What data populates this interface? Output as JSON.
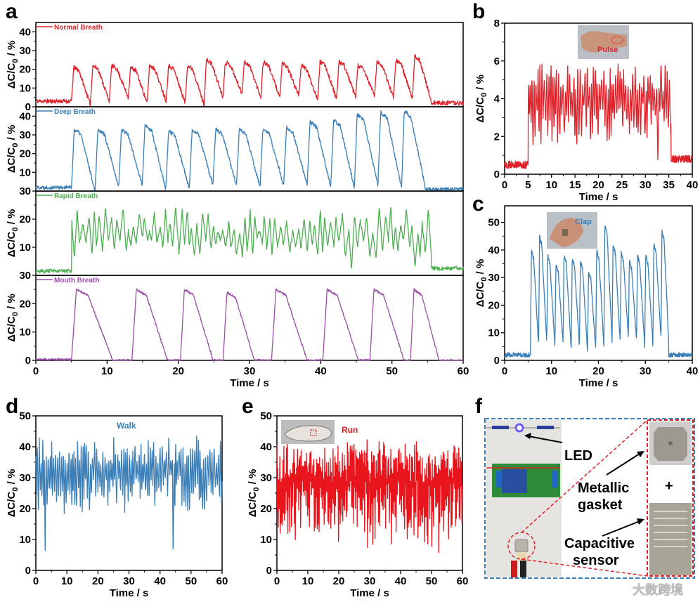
{
  "panel_letters": {
    "a": "a",
    "b": "b",
    "c": "c",
    "d": "d",
    "e": "e",
    "f": "f"
  },
  "ylabel": {
    "main": "ΔC/C",
    "sub": "0",
    "tail": " / %"
  },
  "watermark": "大数跨境",
  "chart_data": [
    {
      "id": "a",
      "type": "line",
      "xlabel": "Time / s",
      "xlim": [
        0,
        60
      ],
      "xticks": [
        0,
        10,
        20,
        30,
        40,
        50,
        60
      ],
      "subplots": [
        {
          "name": "Normal Breath",
          "color": "#e0222a",
          "ylim": [
            0,
            45
          ],
          "yticks": [
            0,
            10,
            20,
            30,
            40
          ],
          "series": {
            "mode": "cycles",
            "baseline": 3,
            "end_baseline": 2,
            "noise": 1.2,
            "onset": 5,
            "offset": 55.5,
            "period": 2.66,
            "peaks": [
              21,
              22,
              22,
              21,
              22,
              22,
              22,
              25,
              24,
              24,
              24,
              23,
              22,
              24,
              24,
              22,
              24,
              25,
              27
            ],
            "troughs": [
              1,
              3,
              5,
              2,
              3,
              2,
              1,
              5,
              7,
              5,
              5,
              6,
              4,
              4,
              5,
              6,
              5,
              4,
              3
            ],
            "seed": 11
          }
        },
        {
          "name": "Deep Breath",
          "color": "#3a7fb8",
          "ylim": [
            0,
            45
          ],
          "yticks": [
            10,
            20,
            30,
            40
          ],
          "series": {
            "mode": "cycles",
            "baseline": 2,
            "end_baseline": 1,
            "noise": 1.0,
            "onset": 5,
            "offset": 54.6,
            "period": 3.31,
            "peaks": [
              33,
              33,
              33,
              35,
              32,
              33,
              33,
              33,
              33,
              34,
              37,
              38,
              41,
              42,
              43
            ],
            "troughs": [
              0,
              2,
              3,
              1,
              1,
              3,
              3,
              2,
              3,
              3,
              2,
              2,
              3,
              2,
              4
            ],
            "seed": 22
          }
        },
        {
          "name": "Rapid Breath",
          "color": "#4caf50",
          "ylim": [
            0,
            30
          ],
          "yticks": [
            10,
            20,
            30
          ],
          "series": {
            "mode": "band",
            "baseline": 1.5,
            "end_baseline": 2.5,
            "noise": 0.7,
            "onset": 5,
            "offset": 55.5,
            "period": 0.75,
            "low": [
              6,
              13
            ],
            "high": [
              15,
              25
            ],
            "dip": 0,
            "dip_prob": 0.04,
            "seed": 33
          }
        },
        {
          "name": "Mouth Breath",
          "color": "#9b4fa8",
          "ylim": [
            0,
            30
          ],
          "yticks": [
            0,
            10,
            20,
            30
          ],
          "series": {
            "mode": "cycles",
            "baseline": 0.3,
            "end_baseline": 0.3,
            "noise": 0.4,
            "onset": 5,
            "offset": 60,
            "starts": [
              5.0,
              13.5,
              20.3,
              26.3,
              33.1,
              40.3,
              46.9,
              52.6
            ],
            "widths": [
              5.8,
              5,
              4.6,
              4.4,
              5,
              5,
              4.8,
              4
            ],
            "peaks": [
              25,
              25,
              25,
              24,
              25,
              25,
              25,
              25
            ],
            "troughs": [
              0,
              0,
              0,
              0,
              0,
              0,
              0,
              0
            ],
            "seed": 44
          }
        }
      ]
    },
    {
      "id": "b",
      "type": "line",
      "xlabel": "Time / s",
      "xlim": [
        0,
        40
      ],
      "xticks": [
        0,
        5,
        10,
        15,
        20,
        25,
        30,
        35,
        40
      ],
      "ylim": [
        0,
        8
      ],
      "yticks": [
        0,
        2,
        4,
        6,
        8
      ],
      "inset_label": "Pulse",
      "color": "#e0222a",
      "series": {
        "mode": "band",
        "baseline": 0.5,
        "end_baseline": 0.8,
        "noise": 0.2,
        "onset": 5,
        "offset": 35.5,
        "period": 0.45,
        "low": [
          1.5,
          3.5
        ],
        "high": [
          4.5,
          6
        ],
        "dip": 0,
        "dip_prob": 0.03,
        "seed": 55
      }
    },
    {
      "id": "c",
      "type": "line",
      "xlabel": "Time / s",
      "xlim": [
        0,
        40
      ],
      "xticks": [
        0,
        10,
        20,
        30,
        40
      ],
      "ylim": [
        0,
        56
      ],
      "yticks": [
        0,
        10,
        20,
        30,
        40,
        50
      ],
      "inset_label": "Clap",
      "color": "#3a7fb8",
      "series": {
        "mode": "cycles",
        "baseline": 2,
        "end_baseline": 2,
        "noise": 0.8,
        "onset": 5.5,
        "offset": 35,
        "period": 1.74,
        "peaks": [
          40,
          45,
          38,
          35,
          38,
          37,
          36,
          32,
          40,
          49,
          42,
          39,
          36,
          38,
          38,
          42,
          47
        ],
        "troughs": [
          5,
          6,
          5,
          6,
          4,
          5,
          3,
          4,
          5,
          7,
          6,
          8,
          7,
          5,
          6,
          8,
          6
        ],
        "seed": 66
      }
    },
    {
      "id": "d",
      "type": "line",
      "xlabel": "Time / s",
      "xlim": [
        0,
        60
      ],
      "xticks": [
        0,
        10,
        20,
        30,
        40,
        50,
        60
      ],
      "ylim": [
        0,
        50
      ],
      "yticks": [
        0,
        10,
        20,
        30,
        40,
        50
      ],
      "label": "Walk",
      "color": "#3a7fb8",
      "series": {
        "mode": "band",
        "baseline": 30,
        "end_baseline": 30,
        "noise": 1,
        "onset": 0,
        "offset": 60,
        "period": 0.62,
        "low": [
          18,
          30
        ],
        "high": [
          34,
          43
        ],
        "dip": 4,
        "dip_prob": 0.06,
        "seed": 77
      }
    },
    {
      "id": "e",
      "type": "line",
      "xlabel": "Time / s",
      "xlim": [
        0,
        60
      ],
      "xticks": [
        0,
        10,
        20,
        30,
        40,
        50,
        60
      ],
      "ylim": [
        0,
        50
      ],
      "yticks": [
        0,
        10,
        20,
        30,
        40,
        50
      ],
      "label": "Run",
      "color": "#e8161c",
      "series": {
        "mode": "band",
        "baseline": 28,
        "end_baseline": 28,
        "noise": 1.5,
        "onset": 0,
        "offset": 60,
        "period": 0.3,
        "low": [
          10,
          28
        ],
        "high": [
          30,
          43
        ],
        "dip": 4,
        "dip_prob": 0.05,
        "seed": 88
      }
    }
  ],
  "panel_f": {
    "led": "LED",
    "gasket_1": "Metallic",
    "gasket_2": "gasket",
    "sensor_1": "Capacitive",
    "sensor_2": "sensor",
    "plus": "+"
  }
}
